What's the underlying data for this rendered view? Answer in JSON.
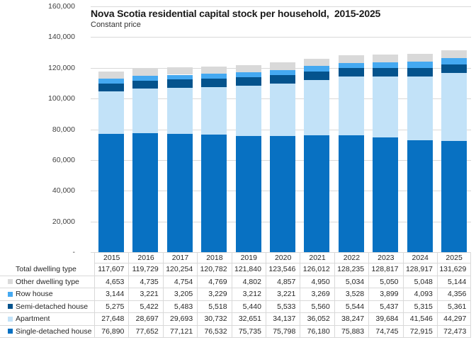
{
  "title": "Nova Scotia residential capital stock per household,  2015-2025",
  "subtitle": "Constant price",
  "colors": {
    "gridline": "#d9d9d9",
    "table_border": "#d9d9d9",
    "axis_text": "#404040",
    "table_text": "#262626"
  },
  "chart_data": {
    "type": "bar",
    "stacked": true,
    "title": "Nova Scotia residential capital stock per household,  2015-2025",
    "subtitle": "Constant price",
    "xlabel": "",
    "ylabel": "",
    "ylim": [
      0,
      160000
    ],
    "grid": true,
    "legend_position": "table-left",
    "categories": [
      "2015",
      "2016",
      "2017",
      "2018",
      "2019",
      "2020",
      "2021",
      "2022",
      "2023",
      "2024",
      "2025"
    ],
    "yticks": [
      {
        "value": 160000,
        "label": "160,000"
      },
      {
        "value": 140000,
        "label": "140,000"
      },
      {
        "value": 120000,
        "label": "120,000"
      },
      {
        "value": 100000,
        "label": "100,000"
      },
      {
        "value": 80000,
        "label": "80,000"
      },
      {
        "value": 60000,
        "label": "60,000"
      },
      {
        "value": 40000,
        "label": "40,000"
      },
      {
        "value": 20000,
        "label": "20,000"
      },
      {
        "value": 0,
        "label": "-"
      }
    ],
    "totals": {
      "name": "Total dwelling type",
      "values": [
        117607,
        119729,
        120254,
        120782,
        121840,
        123546,
        126012,
        128235,
        128817,
        128917,
        131629
      ]
    },
    "series": [
      {
        "name": "Other dwelling type",
        "color": "#d9d9d9",
        "values": [
          4653,
          4735,
          4754,
          4769,
          4802,
          4857,
          4950,
          5034,
          5050,
          5048,
          5144
        ]
      },
      {
        "name": "Row house",
        "color": "#45a9f1",
        "values": [
          3144,
          3221,
          3205,
          3229,
          3212,
          3221,
          3269,
          3528,
          3899,
          4093,
          4356
        ]
      },
      {
        "name": "Semi-detached house",
        "color": "#04538d",
        "values": [
          5275,
          5422,
          5483,
          5518,
          5440,
          5533,
          5560,
          5544,
          5437,
          5315,
          5361
        ]
      },
      {
        "name": "Apartment",
        "color": "#c2e2f8",
        "values": [
          27648,
          28697,
          29693,
          30732,
          32651,
          34137,
          36052,
          38247,
          39684,
          41546,
          44297
        ]
      },
      {
        "name": "Single-detached house",
        "color": "#0871c2",
        "values": [
          76890,
          77652,
          77121,
          76532,
          75735,
          75798,
          76180,
          75883,
          74745,
          72915,
          72473
        ]
      }
    ]
  }
}
